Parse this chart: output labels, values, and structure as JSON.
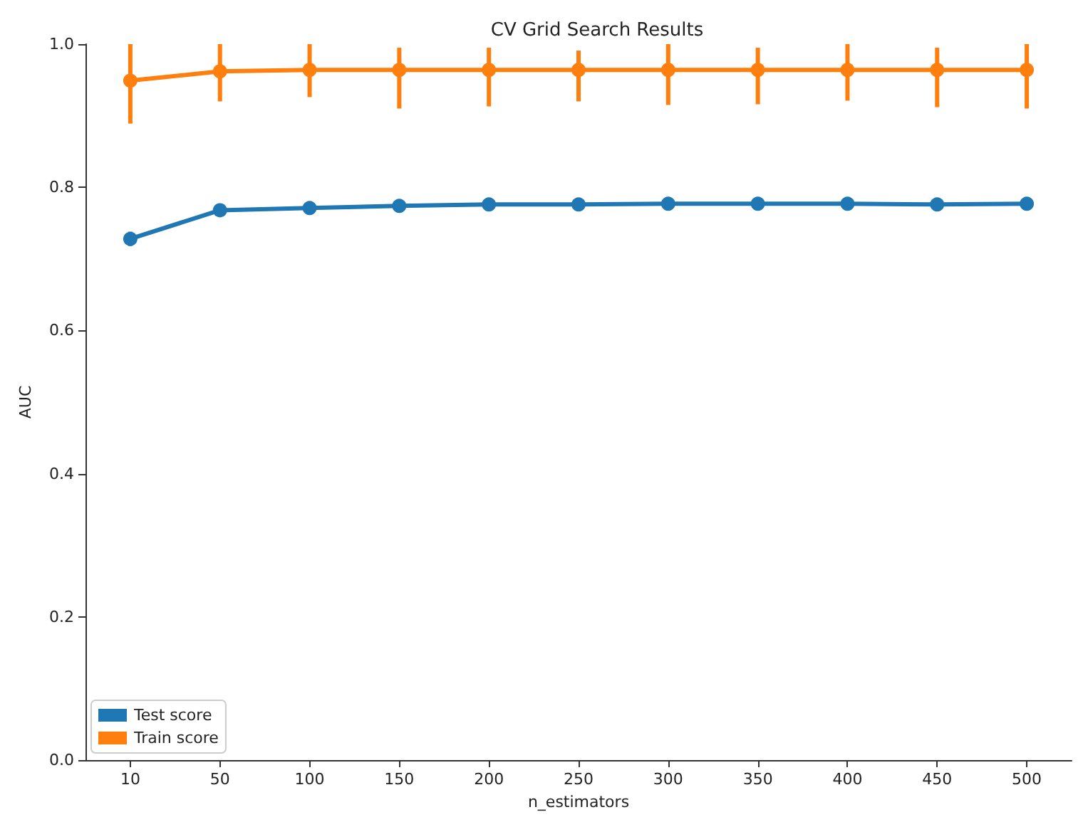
{
  "chart_data": {
    "type": "line",
    "title": "CV Grid Search Results",
    "xlabel": "n_estimators",
    "ylabel": "AUC",
    "categories": [
      "10",
      "50",
      "100",
      "150",
      "200",
      "250",
      "300",
      "350",
      "400",
      "450",
      "500"
    ],
    "series": [
      {
        "name": "Test score",
        "color": "#1f77b4",
        "values": [
          0.728,
          0.768,
          0.771,
          0.774,
          0.776,
          0.776,
          0.777,
          0.777,
          0.777,
          0.776,
          0.777
        ],
        "errors": [
          [
            0.718,
            0.738
          ],
          null,
          null,
          null,
          null,
          null,
          null,
          null,
          null,
          null,
          null
        ]
      },
      {
        "name": "Train score",
        "color": "#ff7f0e",
        "values": [
          0.949,
          0.962,
          0.964,
          0.964,
          0.964,
          0.964,
          0.964,
          0.964,
          0.964,
          0.964,
          0.964
        ],
        "errors": [
          [
            0.889,
            1.0
          ],
          [
            0.92,
            1.0
          ],
          [
            0.926,
            1.0
          ],
          [
            0.91,
            0.995
          ],
          [
            0.913,
            0.995
          ],
          [
            0.92,
            0.991
          ],
          [
            0.915,
            1.0
          ],
          [
            0.916,
            0.995
          ],
          [
            0.921,
            1.0
          ],
          [
            0.912,
            0.995
          ],
          [
            0.91,
            1.0
          ]
        ]
      }
    ],
    "ylim": [
      0,
      1
    ],
    "yticks": [
      {
        "value": 0,
        "label": "0.0"
      },
      {
        "value": 0.2,
        "label": "0.2"
      },
      {
        "value": 0.4,
        "label": "0.4"
      },
      {
        "value": 0.6,
        "label": "0.6"
      },
      {
        "value": 0.8,
        "label": "0.8"
      },
      {
        "value": 1,
        "label": "1.0"
      }
    ],
    "marker": "circle",
    "legend": "bottom left",
    "grid": false
  }
}
